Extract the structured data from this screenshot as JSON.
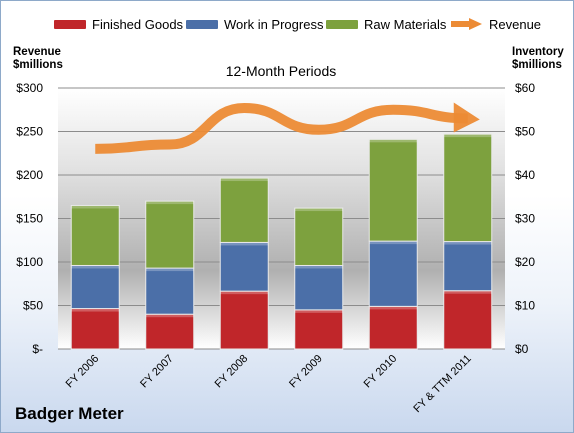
{
  "chart_data": {
    "type": "bar",
    "stacked": true,
    "subtitle": "12-Month Periods",
    "categories": [
      "FY 2006",
      "FY 2007",
      "FY 2008",
      "FY 2009",
      "FY 2010",
      "FY & TTM 2011"
    ],
    "series": [
      {
        "name": "Finished Goods",
        "color": "#c0262a",
        "axis": "right",
        "values": [
          9.3,
          8.0,
          13.3,
          9.0,
          9.8,
          13.4
        ]
      },
      {
        "name": "Work in Progress",
        "color": "#4b6fa8",
        "axis": "right",
        "values": [
          9.9,
          10.6,
          11.2,
          10.2,
          15.0,
          11.3
        ]
      },
      {
        "name": "Raw Materials",
        "color": "#7da13e",
        "axis": "right",
        "values": [
          13.8,
          15.4,
          14.8,
          13.2,
          23.4,
          24.7
        ]
      },
      {
        "name": "Revenue",
        "color": "#ec8b35",
        "axis": "left",
        "type": "line",
        "values": [
          230,
          235,
          277,
          252,
          275,
          265
        ]
      }
    ],
    "y_left": {
      "label": "Revenue $millions",
      "lim": [
        0,
        300
      ],
      "ticks": [
        "$-",
        "$50",
        "$100",
        "$150",
        "$200",
        "$250",
        "$300"
      ]
    },
    "y_right": {
      "label": "Inventory $millions",
      "lim": [
        0,
        60
      ],
      "ticks": [
        "$0",
        "$10",
        "$20",
        "$30",
        "$40",
        "$50",
        "$60"
      ]
    },
    "grid": true,
    "legend": "top"
  },
  "header": {
    "left_axis_title_line1": "Revenue",
    "left_axis_title_line2": "$millions",
    "right_axis_title_line1": "Inventory",
    "right_axis_title_line2": "$millions",
    "subtitle": "12-Month Periods"
  },
  "footer": {
    "company": "Badger Meter"
  }
}
